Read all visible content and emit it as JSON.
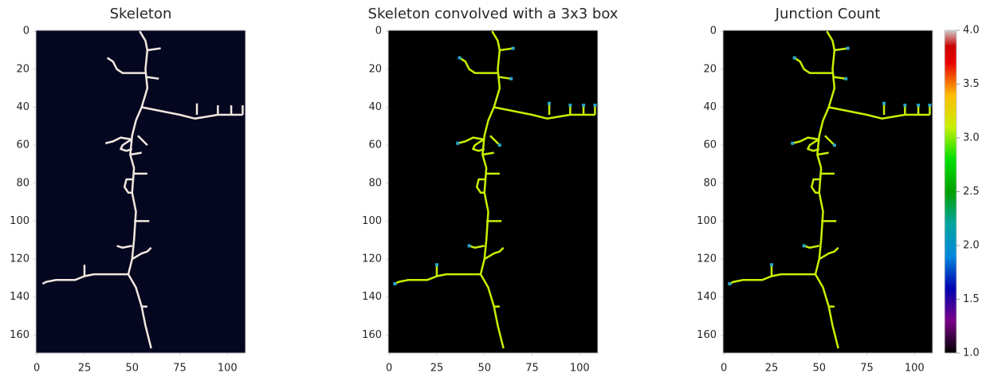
{
  "chart_data": [
    {
      "type": "image",
      "title": "Skeleton",
      "background": "#050620",
      "color": "#f2e8df",
      "xlim": [
        -0.5,
        109.5
      ],
      "ylim": [
        169.5,
        -0.5
      ],
      "xticks": [
        0,
        25,
        50,
        75,
        100
      ],
      "yticks": [
        0,
        20,
        40,
        60,
        80,
        100,
        120,
        140,
        160
      ],
      "branches": [
        {
          "x": [
            54,
            57,
            58,
            57,
            58,
            55,
            52,
            50,
            49,
            51,
            50,
            52,
            51,
            50,
            48,
            52,
            55,
            57,
            60
          ],
          "y": [
            0,
            5,
            10,
            20,
            30,
            40,
            47,
            55,
            65,
            72,
            85,
            95,
            110,
            120,
            128,
            135,
            145,
            155,
            167
          ]
        },
        {
          "x": [
            58,
            65
          ],
          "y": [
            10,
            9
          ]
        },
        {
          "x": [
            57,
            45,
            42,
            40,
            37
          ],
          "y": [
            22,
            22,
            20,
            16,
            14
          ]
        },
        {
          "x": [
            57,
            64
          ],
          "y": [
            24,
            25
          ]
        },
        {
          "x": [
            55,
            65,
            75,
            83,
            95,
            108
          ],
          "y": [
            40,
            42,
            44,
            46,
            44,
            44
          ]
        },
        {
          "x": [
            84,
            84
          ],
          "y": [
            44,
            38
          ]
        },
        {
          "x": [
            95,
            95
          ],
          "y": [
            44,
            39
          ]
        },
        {
          "x": [
            102,
            102
          ],
          "y": [
            44,
            39
          ]
        },
        {
          "x": [
            108,
            108
          ],
          "y": [
            44,
            39
          ]
        },
        {
          "x": [
            50,
            44,
            40,
            36
          ],
          "y": [
            57,
            56,
            58,
            59
          ]
        },
        {
          "x": [
            50,
            48,
            45,
            44,
            47,
            50
          ],
          "y": [
            57,
            58,
            60,
            62,
            63,
            62
          ]
        },
        {
          "x": [
            53,
            58
          ],
          "y": [
            55,
            60
          ]
        },
        {
          "x": [
            49,
            55
          ],
          "y": [
            65,
            64
          ]
        },
        {
          "x": [
            51,
            58
          ],
          "y": [
            75,
            75
          ]
        },
        {
          "x": [
            51,
            47,
            46,
            48,
            50
          ],
          "y": [
            78,
            78,
            82,
            85,
            85
          ]
        },
        {
          "x": [
            51,
            59
          ],
          "y": [
            100,
            100
          ]
        },
        {
          "x": [
            50,
            45,
            42
          ],
          "y": [
            113,
            114,
            113
          ]
        },
        {
          "x": [
            50,
            55,
            58,
            60
          ],
          "y": [
            120,
            117,
            116,
            114
          ]
        },
        {
          "x": [
            48,
            40,
            30,
            25,
            20,
            15,
            10,
            5,
            3
          ],
          "y": [
            128,
            128,
            128,
            129,
            131,
            131,
            131,
            132,
            133
          ]
        },
        {
          "x": [
            25,
            25
          ],
          "y": [
            129,
            123
          ]
        },
        {
          "x": [
            55,
            58
          ],
          "y": [
            145,
            145
          ]
        }
      ]
    },
    {
      "type": "image",
      "title": "Skeleton convolved with a 3x3 box",
      "background": "#000000",
      "color": "#c8f000",
      "xlim": [
        -0.5,
        109.5
      ],
      "ylim": [
        169.5,
        -0.5
      ],
      "xticks": [
        0,
        25,
        50,
        75,
        100
      ],
      "yticks": [
        0,
        20,
        40,
        60,
        80,
        100,
        120,
        140,
        160
      ],
      "endpoints": {
        "x": [
          65,
          37,
          64,
          84,
          95,
          102,
          108,
          36,
          58,
          42,
          3,
          25
        ],
        "y": [
          9,
          14,
          25,
          38,
          39,
          39,
          39,
          59,
          60,
          113,
          133,
          123
        ]
      },
      "endpoint_color": "#2aa6c8"
    },
    {
      "type": "image",
      "title": "Junction Count",
      "background": "#000000",
      "color": "#c8f000",
      "xlim": [
        -0.5,
        109.5
      ],
      "ylim": [
        169.5,
        -0.5
      ],
      "xticks": [
        0,
        25,
        50,
        75,
        100
      ],
      "yticks": [
        0,
        20,
        40,
        60,
        80,
        100,
        120,
        140,
        160
      ],
      "endpoints": {
        "x": [
          65,
          37,
          64,
          84,
          95,
          102,
          108,
          36,
          58,
          42,
          3,
          25
        ],
        "y": [
          9,
          14,
          25,
          38,
          39,
          39,
          39,
          59,
          60,
          113,
          133,
          123
        ]
      },
      "endpoint_color": "#2aa6c8",
      "colorbar": {
        "lim": [
          1,
          4
        ],
        "ticks": [
          {
            "value": 1,
            "label": "1.0"
          },
          {
            "value": 1.5,
            "label": "1.5"
          },
          {
            "value": 2,
            "label": "2.0"
          },
          {
            "value": 2.5,
            "label": "2.5"
          },
          {
            "value": 3,
            "label": "3.0"
          },
          {
            "value": 3.5,
            "label": "3.5"
          },
          {
            "value": 4,
            "label": "4.0"
          }
        ]
      }
    }
  ]
}
